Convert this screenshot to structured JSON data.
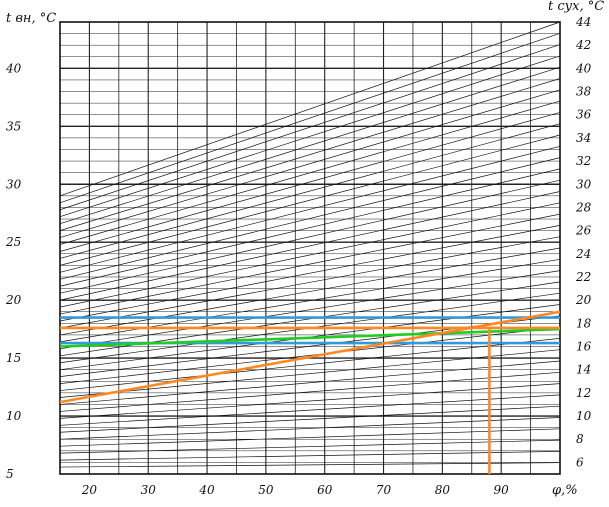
{
  "chart_data": {
    "type": "line",
    "title": "",
    "left_axis": {
      "label": "t вн, °С",
      "range": [
        5,
        44
      ],
      "ticks": [
        5,
        10,
        15,
        20,
        25,
        30,
        35,
        40
      ]
    },
    "right_axis": {
      "label": "t сух, °С",
      "range": [
        5,
        44
      ],
      "ticks": [
        6,
        8,
        10,
        12,
        14,
        16,
        18,
        20,
        22,
        24,
        26,
        28,
        30,
        32,
        34,
        36,
        38,
        40,
        42,
        44
      ]
    },
    "x_axis": {
      "label": "φ,%",
      "range": [
        15,
        100
      ],
      "ticks": [
        20,
        30,
        40,
        50,
        60,
        70,
        80,
        90
      ]
    },
    "grid": true,
    "family_lines": {
      "count": 40,
      "left_start": 5,
      "left_end_at_30": 29,
      "right_end": 44,
      "right_bottom": 5
    },
    "series": [
      {
        "values": [
          [
            15,
            18.5
          ],
          [
            100,
            18.5
          ]
        ],
        "color": "#3399dd"
      },
      {
        "values": [
          [
            15,
            16.3
          ],
          [
            100,
            16.3
          ]
        ],
        "color": "#3399dd"
      },
      {
        "values": [
          [
            15,
            16.0
          ],
          [
            100,
            17.5
          ]
        ],
        "color": "#22cc22"
      },
      {
        "values": [
          [
            15,
            17.6
          ],
          [
            100,
            17.6
          ]
        ],
        "color": "#ff8822"
      },
      {
        "values": [
          [
            15,
            11.2
          ],
          [
            100,
            19.0
          ]
        ],
        "color": "#ff8822"
      },
      {
        "values": [
          [
            88,
            17.6
          ],
          [
            88,
            5
          ]
        ],
        "color": "#ff8822"
      }
    ]
  }
}
